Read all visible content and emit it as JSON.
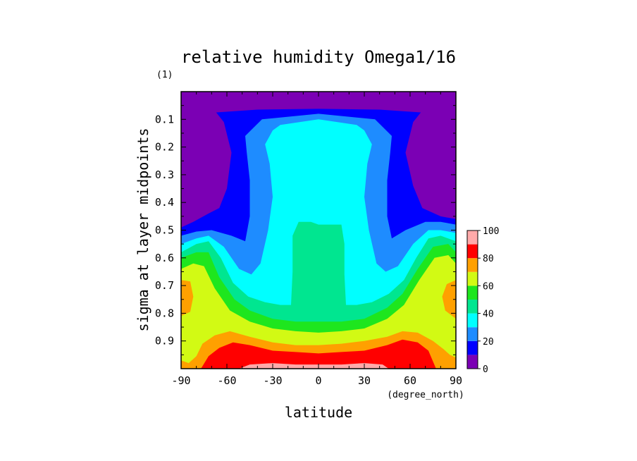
{
  "chart_data": {
    "type": "heatmap",
    "title": "relative humidity Omega1/16",
    "units": "(1)",
    "xlabel": "latitude",
    "xunits": "(degree_north)",
    "ylabel": "sigma at layer midpoints",
    "xlim": [
      -90,
      90
    ],
    "ylim": [
      0.0,
      1.0
    ],
    "y_inverted": true,
    "xticks": [
      -90,
      -60,
      -30,
      0,
      30,
      60,
      90
    ],
    "xtick_labels": [
      "-90",
      "-60",
      "-30",
      "0",
      "30",
      "60",
      "90"
    ],
    "yticks": [
      0.1,
      0.2,
      0.3,
      0.4,
      0.5,
      0.6,
      0.7,
      0.8,
      0.9
    ],
    "ytick_labels": [
      "0.1",
      "0.2",
      "0.3",
      "0.4",
      "0.5",
      "0.6",
      "0.7",
      "0.8",
      "0.9"
    ],
    "colorbar": {
      "levels": [
        0,
        10,
        20,
        30,
        40,
        50,
        60,
        70,
        80,
        90,
        100
      ],
      "tick_labels": [
        "0",
        "20",
        "40",
        "60",
        "80",
        "100"
      ],
      "colors": [
        "#7b00b4",
        "#0000ff",
        "#1e8cff",
        "#00ffff",
        "#00e690",
        "#1ee61e",
        "#d2fa14",
        "#ffa000",
        "#ff0000",
        "#ffaaaa"
      ]
    },
    "contour_regions": [
      {
        "level_index": 1,
        "pts": [
          [
            -90,
            0.49
          ],
          [
            -82,
            0.47
          ],
          [
            -72,
            0.44
          ],
          [
            -65,
            0.42
          ],
          [
            -60,
            0.35
          ],
          [
            -57,
            0.22
          ],
          [
            -62,
            0.11
          ],
          [
            -67,
            0.075
          ],
          [
            -40,
            0.065
          ],
          [
            0,
            0.062
          ],
          [
            40,
            0.065
          ],
          [
            67,
            0.075
          ],
          [
            62,
            0.11
          ],
          [
            57,
            0.22
          ],
          [
            62,
            0.34
          ],
          [
            68,
            0.42
          ],
          [
            80,
            0.45
          ],
          [
            90,
            0.46
          ],
          [
            90,
            1.0
          ],
          [
            -90,
            1.0
          ]
        ]
      },
      {
        "level_index": 2,
        "pts": [
          [
            -90,
            0.52
          ],
          [
            -80,
            0.505
          ],
          [
            -70,
            0.5
          ],
          [
            -57,
            0.52
          ],
          [
            -48,
            0.54
          ],
          [
            -45,
            0.45
          ],
          [
            -45,
            0.32
          ],
          [
            -47,
            0.22
          ],
          [
            -48,
            0.16
          ],
          [
            -37,
            0.1
          ],
          [
            0,
            0.08
          ],
          [
            37,
            0.1
          ],
          [
            48,
            0.16
          ],
          [
            47,
            0.22
          ],
          [
            45,
            0.32
          ],
          [
            45,
            0.45
          ],
          [
            48,
            0.53
          ],
          [
            57,
            0.5
          ],
          [
            70,
            0.47
          ],
          [
            80,
            0.47
          ],
          [
            90,
            0.48
          ],
          [
            90,
            1.0
          ],
          [
            -90,
            1.0
          ]
        ]
      },
      {
        "level_index": 3,
        "pts": [
          [
            -90,
            0.55
          ],
          [
            -80,
            0.53
          ],
          [
            -72,
            0.52
          ],
          [
            -62,
            0.56
          ],
          [
            -52,
            0.64
          ],
          [
            -44,
            0.66
          ],
          [
            -38,
            0.62
          ],
          [
            -33,
            0.5
          ],
          [
            -30,
            0.38
          ],
          [
            -32,
            0.26
          ],
          [
            -35,
            0.19
          ],
          [
            -30,
            0.14
          ],
          [
            -25,
            0.12
          ],
          [
            0,
            0.1
          ],
          [
            25,
            0.12
          ],
          [
            30,
            0.14
          ],
          [
            35,
            0.19
          ],
          [
            32,
            0.26
          ],
          [
            30,
            0.38
          ],
          [
            33,
            0.5
          ],
          [
            38,
            0.62
          ],
          [
            44,
            0.65
          ],
          [
            52,
            0.63
          ],
          [
            62,
            0.55
          ],
          [
            72,
            0.5
          ],
          [
            80,
            0.5
          ],
          [
            90,
            0.51
          ],
          [
            90,
            1.0
          ],
          [
            -90,
            1.0
          ]
        ]
      },
      {
        "level_index": 4,
        "pts": [
          [
            -90,
            0.58
          ],
          [
            -80,
            0.55
          ],
          [
            -72,
            0.54
          ],
          [
            -64,
            0.6
          ],
          [
            -56,
            0.69
          ],
          [
            -46,
            0.74
          ],
          [
            -35,
            0.76
          ],
          [
            -25,
            0.77
          ],
          [
            -18,
            0.77
          ],
          [
            -17,
            0.65
          ],
          [
            -17,
            0.52
          ],
          [
            -13,
            0.47
          ],
          [
            -5,
            0.47
          ],
          [
            0,
            0.48
          ],
          [
            5,
            0.48
          ],
          [
            15,
            0.48
          ],
          [
            17,
            0.55
          ],
          [
            17,
            0.66
          ],
          [
            18,
            0.77
          ],
          [
            25,
            0.77
          ],
          [
            35,
            0.76
          ],
          [
            46,
            0.73
          ],
          [
            56,
            0.68
          ],
          [
            64,
            0.6
          ],
          [
            72,
            0.53
          ],
          [
            80,
            0.52
          ],
          [
            90,
            0.54
          ],
          [
            90,
            1.0
          ],
          [
            -90,
            1.0
          ]
        ]
      },
      {
        "level_index": 5,
        "pts": [
          [
            -90,
            0.6
          ],
          [
            -80,
            0.58
          ],
          [
            -72,
            0.58
          ],
          [
            -65,
            0.67
          ],
          [
            -55,
            0.75
          ],
          [
            -45,
            0.79
          ],
          [
            -30,
            0.82
          ],
          [
            -15,
            0.83
          ],
          [
            0,
            0.83
          ],
          [
            15,
            0.83
          ],
          [
            30,
            0.82
          ],
          [
            45,
            0.78
          ],
          [
            55,
            0.73
          ],
          [
            65,
            0.64
          ],
          [
            75,
            0.56
          ],
          [
            85,
            0.55
          ],
          [
            90,
            0.58
          ],
          [
            90,
            1.0
          ],
          [
            -90,
            1.0
          ]
        ]
      },
      {
        "level_index": 6,
        "pts": [
          [
            -90,
            0.64
          ],
          [
            -82,
            0.62
          ],
          [
            -75,
            0.63
          ],
          [
            -68,
            0.71
          ],
          [
            -58,
            0.79
          ],
          [
            -45,
            0.83
          ],
          [
            -30,
            0.855
          ],
          [
            -15,
            0.865
          ],
          [
            0,
            0.87
          ],
          [
            15,
            0.865
          ],
          [
            30,
            0.855
          ],
          [
            45,
            0.82
          ],
          [
            56,
            0.77
          ],
          [
            66,
            0.68
          ],
          [
            76,
            0.6
          ],
          [
            85,
            0.59
          ],
          [
            90,
            0.62
          ],
          [
            90,
            1.0
          ],
          [
            -90,
            1.0
          ]
        ]
      },
      {
        "level_index": 7,
        "pts": [
          [
            -90,
            0.97
          ],
          [
            -85,
            0.98
          ],
          [
            -80,
            0.955
          ],
          [
            -76,
            0.91
          ],
          [
            -68,
            0.88
          ],
          [
            -58,
            0.865
          ],
          [
            -45,
            0.885
          ],
          [
            -30,
            0.905
          ],
          [
            -15,
            0.915
          ],
          [
            0,
            0.915
          ],
          [
            15,
            0.91
          ],
          [
            30,
            0.9
          ],
          [
            45,
            0.885
          ],
          [
            55,
            0.865
          ],
          [
            65,
            0.87
          ],
          [
            75,
            0.9
          ],
          [
            82,
            0.93
          ],
          [
            86,
            0.95
          ],
          [
            90,
            0.96
          ],
          [
            90,
            1.0
          ],
          [
            -90,
            1.0
          ]
        ]
      },
      {
        "level_index": 7,
        "pts": [
          [
            -90,
            0.68
          ],
          [
            -84,
            0.685
          ],
          [
            -82,
            0.74
          ],
          [
            -84,
            0.795
          ],
          [
            -90,
            0.81
          ]
        ]
      },
      {
        "level_index": 7,
        "pts": [
          [
            90,
            0.68
          ],
          [
            84,
            0.695
          ],
          [
            81,
            0.74
          ],
          [
            83,
            0.79
          ],
          [
            90,
            0.82
          ]
        ]
      },
      {
        "level_index": 8,
        "pts": [
          [
            -77,
            1.0
          ],
          [
            -72,
            0.955
          ],
          [
            -65,
            0.925
          ],
          [
            -56,
            0.905
          ],
          [
            -45,
            0.915
          ],
          [
            -30,
            0.935
          ],
          [
            -15,
            0.94
          ],
          [
            0,
            0.945
          ],
          [
            15,
            0.94
          ],
          [
            30,
            0.935
          ],
          [
            45,
            0.915
          ],
          [
            55,
            0.895
          ],
          [
            65,
            0.905
          ],
          [
            72,
            0.935
          ],
          [
            77,
            1.0
          ]
        ]
      },
      {
        "level_index": 9,
        "pts": [
          [
            -52,
            1.0
          ],
          [
            -45,
            0.985
          ],
          [
            -30,
            0.98
          ],
          [
            -15,
            0.985
          ],
          [
            0,
            0.985
          ],
          [
            15,
            0.985
          ],
          [
            30,
            0.98
          ],
          [
            42,
            0.985
          ],
          [
            46,
            1.0
          ]
        ]
      }
    ]
  }
}
